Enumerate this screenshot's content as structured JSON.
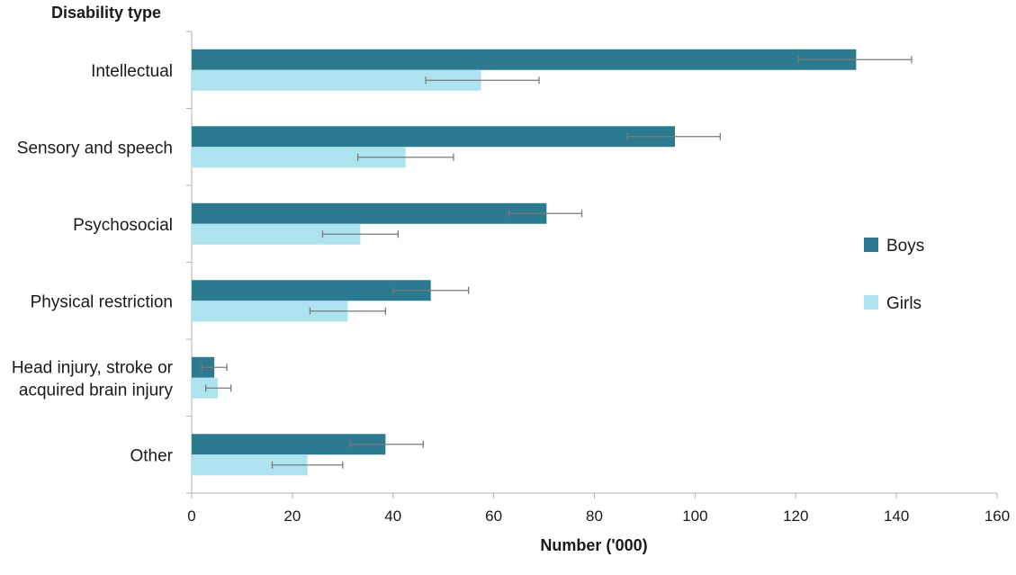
{
  "chart_data": {
    "type": "bar",
    "orientation": "horizontal",
    "title": "",
    "ylabel": "Disability type",
    "xlabel": "Number  ('000)",
    "xlim": [
      0,
      160
    ],
    "xticks": [
      0,
      20,
      40,
      60,
      80,
      100,
      120,
      140,
      160
    ],
    "categories": [
      [
        "Intellectual"
      ],
      [
        "Sensory and speech"
      ],
      [
        "Psychosocial"
      ],
      [
        "Physical restriction"
      ],
      [
        "Head injury, stroke or",
        "acquired brain injury"
      ],
      [
        "Other"
      ]
    ],
    "series": [
      {
        "name": "Boys",
        "color": "#2b7a90",
        "values": [
          132,
          96,
          70.5,
          47.5,
          4.5,
          38.5
        ],
        "error_low": [
          120.5,
          86.5,
          63,
          40,
          2,
          31.5
        ],
        "error_high": [
          143,
          105,
          77.5,
          55,
          7,
          46
        ]
      },
      {
        "name": "Girls",
        "color": "#ade3ef",
        "values": [
          57.5,
          42.5,
          33.5,
          31,
          5.2,
          23
        ],
        "error_low": [
          46.5,
          33,
          26,
          23.5,
          2.8,
          16
        ],
        "error_high": [
          69,
          52,
          41,
          38.5,
          7.8,
          30
        ]
      }
    ],
    "legend_position": "right",
    "grid": false
  }
}
